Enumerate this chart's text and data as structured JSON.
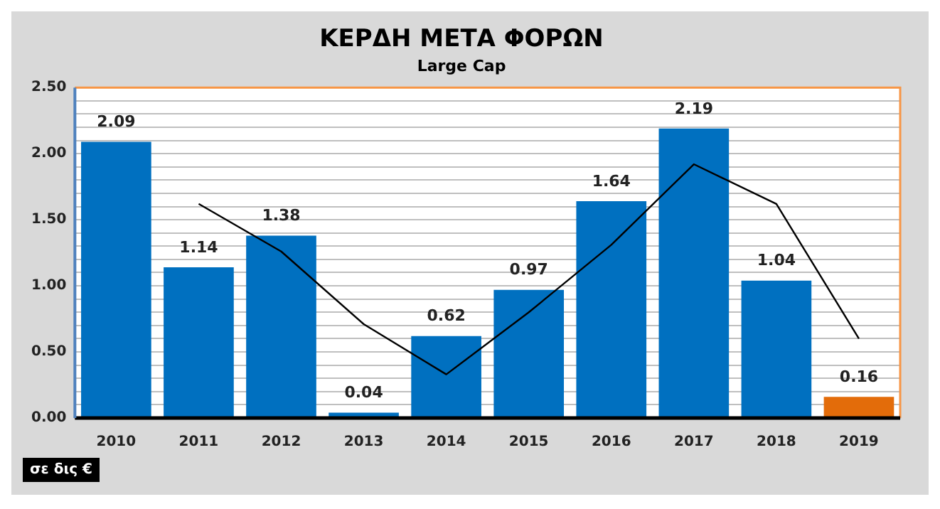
{
  "chart_data": {
    "type": "bar",
    "title": "ΚΕΡΔΗ ΜΕΤΑ ΦΟΡΩΝ",
    "subtitle": "Large Cap",
    "categories": [
      "2010",
      "2011",
      "2012",
      "2013",
      "2014",
      "2015",
      "2016",
      "2017",
      "2018",
      "2019"
    ],
    "series": [
      {
        "value_labels": [
          "2.09",
          "1.14",
          "1.38",
          "0.04",
          "0.62",
          "0.97",
          "1.64",
          "2.19",
          "1.04",
          "0.16"
        ],
        "colors": [
          "#0070c0",
          "#0070c0",
          "#0070c0",
          "#0070c0",
          "#0070c0",
          "#0070c0",
          "#0070c0",
          "#0070c0",
          "#0070c0",
          "#e36c0a"
        ],
        "values": [
          2.09,
          1.14,
          1.38,
          0.04,
          0.62,
          0.97,
          1.64,
          2.19,
          1.04,
          0.16
        ]
      },
      {
        "type": "line",
        "color": "#000000",
        "values": [
          null,
          1.62,
          1.26,
          0.71,
          0.33,
          0.8,
          1.31,
          1.92,
          1.62,
          0.6
        ]
      }
    ],
    "ylim": [
      0,
      2.5
    ],
    "yticks": [
      {
        "value": 0,
        "label": "0.00"
      },
      {
        "value": 0.1,
        "label": null
      },
      {
        "value": 0.2,
        "label": null
      },
      {
        "value": 0.3,
        "label": null
      },
      {
        "value": 0.4,
        "label": null
      },
      {
        "value": 0.5,
        "label": "0.50"
      },
      {
        "value": 0.6,
        "label": null
      },
      {
        "value": 0.7,
        "label": null
      },
      {
        "value": 0.8,
        "label": null
      },
      {
        "value": 0.9,
        "label": null
      },
      {
        "value": 1,
        "label": "1.00"
      },
      {
        "value": 1.1,
        "label": null
      },
      {
        "value": 1.2,
        "label": null
      },
      {
        "value": 1.3,
        "label": null
      },
      {
        "value": 1.4,
        "label": null
      },
      {
        "value": 1.5,
        "label": "1.50"
      },
      {
        "value": 1.6,
        "label": null
      },
      {
        "value": 1.7,
        "label": null
      },
      {
        "value": 1.8,
        "label": null
      },
      {
        "value": 1.9,
        "label": null
      },
      {
        "value": 2,
        "label": "2.00"
      },
      {
        "value": 2.1,
        "label": null
      },
      {
        "value": 2.2,
        "label": null
      },
      {
        "value": 2.3,
        "label": null
      },
      {
        "value": 2.4,
        "label": null
      },
      {
        "value": 2.5,
        "label": "2.50"
      }
    ],
    "grid": "y",
    "legend": false,
    "marker": "none",
    "line_style": "solid",
    "annotations": [
      "σε δις €"
    ]
  }
}
